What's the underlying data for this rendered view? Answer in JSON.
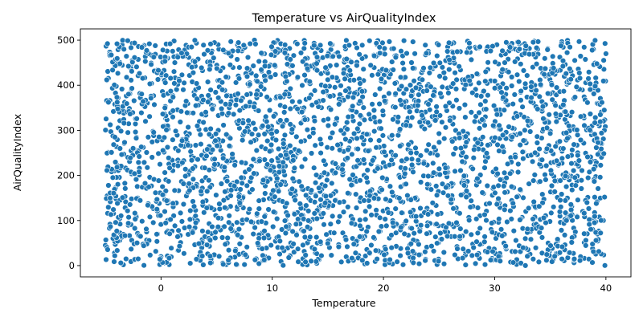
{
  "chart_data": {
    "type": "scatter",
    "title": "Temperature vs AirQualityIndex",
    "xlabel": "Temperature",
    "ylabel": "AirQualityIndex",
    "xlim": [
      -7.25,
      42.25
    ],
    "ylim": [
      -25,
      525
    ],
    "xticks": [
      0,
      10,
      20,
      30,
      40
    ],
    "yticks": [
      0,
      100,
      200,
      300,
      400,
      500
    ],
    "grid": false,
    "color": "#1f77b4",
    "point_count": 3000,
    "x_range": [
      -5,
      40
    ],
    "y_range": [
      0,
      500
    ],
    "distribution": "uniform",
    "series": [
      {
        "x": [
          -5.0,
          -4.8,
          -4.2,
          -3.5,
          -2.1,
          -1.4,
          0.0,
          0.6,
          1.3,
          2.0,
          3.1,
          4.5,
          5.2,
          6.0,
          7.4,
          8.3,
          9.5,
          10.0,
          11.2,
          12.1,
          13.6,
          14.4,
          15.9,
          16.8,
          18.0,
          19.2,
          20.0,
          21.4,
          22.6,
          23.1,
          24.5,
          25.3,
          26.7,
          27.9,
          29.0,
          30.2,
          31.5,
          32.8,
          33.6,
          34.9,
          35.4,
          36.7,
          37.2,
          38.8,
          39.4,
          40.0
        ],
        "y": [
          45,
          430,
          210,
          490,
          150,
          320,
          20,
          460,
          260,
          390,
          110,
          10,
          480,
          230,
          350,
          70,
          420,
          300,
          180,
          495,
          40,
          270,
          410,
          130,
          330,
          60,
          470,
          200,
          380,
          90,
          250,
          440,
          15,
          340,
          160,
          490,
          280,
          120,
          400,
          30,
          360,
          190,
          455,
          80,
          310,
          470
        ]
      }
    ]
  }
}
